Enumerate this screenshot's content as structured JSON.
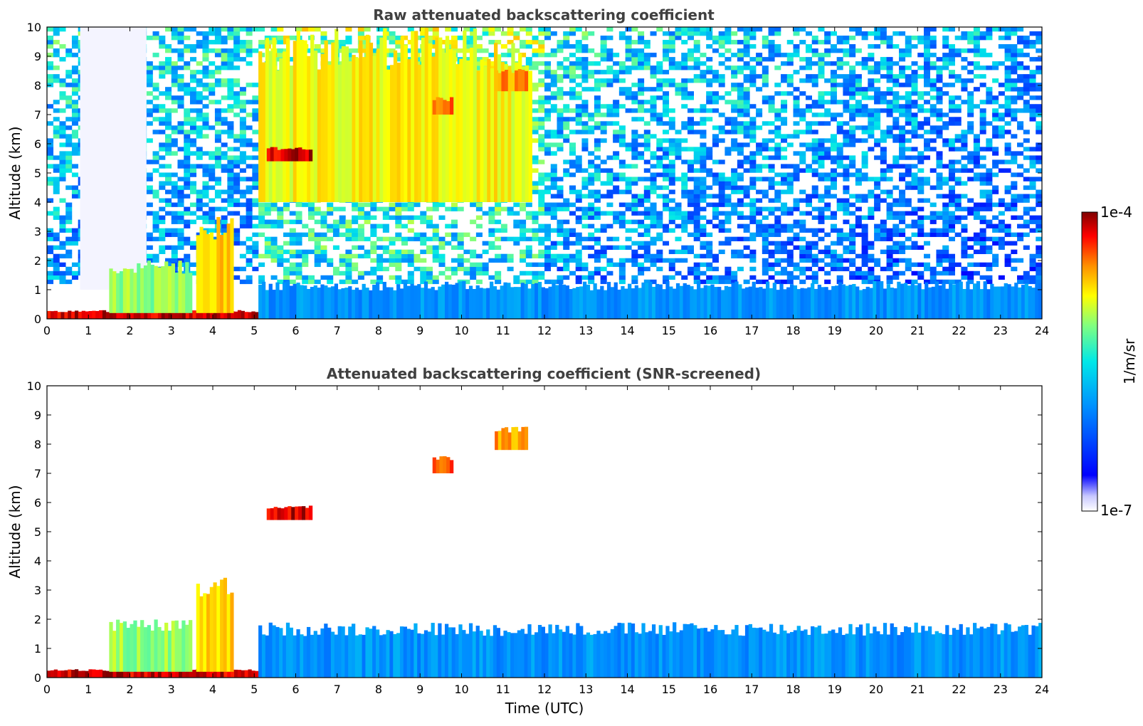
{
  "chart_data": [
    {
      "type": "heatmap",
      "title": "Raw attenuated backscattering coefficient",
      "xlabel": "",
      "ylabel": "Altitude (km)",
      "xlim": [
        0,
        24
      ],
      "ylim": [
        0,
        10
      ],
      "xticks": [
        "0",
        "1",
        "2",
        "3",
        "4",
        "5",
        "6",
        "7",
        "8",
        "9",
        "10",
        "11",
        "12",
        "13",
        "14",
        "15",
        "16",
        "17",
        "18",
        "19",
        "20",
        "21",
        "22",
        "23",
        "24"
      ],
      "yticks": [
        "0",
        "1",
        "2",
        "3",
        "4",
        "5",
        "6",
        "7",
        "8",
        "9",
        "10"
      ],
      "features": [
        {
          "name": "noise-background",
          "t_start": 0,
          "t_end": 24,
          "alt_bottom": 1.2,
          "alt_top": 10,
          "level": "variable"
        },
        {
          "name": "clear-gap",
          "t_start": 0.8,
          "t_end": 2.4,
          "alt_bottom": 1.0,
          "alt_top": 10,
          "level": "none"
        },
        {
          "name": "surface-layer",
          "t_start": 0.0,
          "t_end": 5.1,
          "alt_bottom": 0,
          "alt_top": 0.3,
          "level": 0.95
        },
        {
          "name": "low-cloud-column",
          "t_start": 3.6,
          "t_end": 4.5,
          "alt_bottom": 0.2,
          "alt_top": 3.5,
          "level": 0.75
        },
        {
          "name": "intermittent-columns",
          "t_start": 1.5,
          "t_end": 3.5,
          "alt_bottom": 0.2,
          "alt_top": 2.0,
          "level": 0.6
        },
        {
          "name": "boundary-layer",
          "t_start": 5.1,
          "t_end": 24,
          "alt_bottom": 0,
          "alt_top": 1.3,
          "level": 0.3
        },
        {
          "name": "upper-noise-high",
          "t_start": 5.1,
          "t_end": 11.7,
          "alt_bottom": 4.0,
          "alt_top": 10,
          "level": 0.7
        },
        {
          "name": "cloud-blob-1",
          "t_start": 5.3,
          "t_end": 6.4,
          "alt_bottom": 5.4,
          "alt_top": 5.9,
          "level": 0.95
        },
        {
          "name": "cloud-blob-2",
          "t_start": 9.3,
          "t_end": 9.8,
          "alt_bottom": 7.0,
          "alt_top": 7.6,
          "level": 0.85
        },
        {
          "name": "cloud-blob-3",
          "t_start": 10.8,
          "t_end": 11.6,
          "alt_bottom": 7.8,
          "alt_top": 8.6,
          "level": 0.8
        }
      ]
    },
    {
      "type": "heatmap",
      "title": "Attenuated backscattering coefficient (SNR-screened)",
      "xlabel": "Time (UTC)",
      "ylabel": "Altitude (km)",
      "xlim": [
        0,
        24
      ],
      "ylim": [
        0,
        10
      ],
      "xticks": [
        "0",
        "1",
        "2",
        "3",
        "4",
        "5",
        "6",
        "7",
        "8",
        "9",
        "10",
        "11",
        "12",
        "13",
        "14",
        "15",
        "16",
        "17",
        "18",
        "19",
        "20",
        "21",
        "22",
        "23",
        "24"
      ],
      "yticks": [
        "0",
        "1",
        "2",
        "3",
        "4",
        "5",
        "6",
        "7",
        "8",
        "9",
        "10"
      ],
      "features": [
        {
          "name": "surface-layer",
          "t_start": 0.0,
          "t_end": 5.1,
          "alt_bottom": 0,
          "alt_top": 0.3,
          "level": 0.95
        },
        {
          "name": "low-cloud-column",
          "t_start": 3.6,
          "t_end": 4.5,
          "alt_bottom": 0.2,
          "alt_top": 3.5,
          "level": 0.75
        },
        {
          "name": "intermittent-columns",
          "t_start": 1.5,
          "t_end": 3.5,
          "alt_bottom": 0.2,
          "alt_top": 2.0,
          "level": 0.6
        },
        {
          "name": "boundary-layer",
          "t_start": 5.1,
          "t_end": 24,
          "alt_bottom": 0,
          "alt_top": 1.9,
          "level": 0.3
        },
        {
          "name": "cloud-blob-1",
          "t_start": 5.3,
          "t_end": 6.4,
          "alt_bottom": 5.4,
          "alt_top": 5.9,
          "level": 0.95
        },
        {
          "name": "cloud-blob-2",
          "t_start": 9.3,
          "t_end": 9.8,
          "alt_bottom": 7.0,
          "alt_top": 7.6,
          "level": 0.85
        },
        {
          "name": "cloud-blob-3",
          "t_start": 10.8,
          "t_end": 11.6,
          "alt_bottom": 7.8,
          "alt_top": 8.6,
          "level": 0.8
        }
      ]
    }
  ],
  "colorbar": {
    "label": "1/m/sr",
    "max_label": "1e-4",
    "min_label": "1e-7",
    "range": [
      1e-07,
      0.0001
    ],
    "colors": [
      "#ffffff",
      "#0000ff",
      "#00bfff",
      "#00ffbf",
      "#ffff00",
      "#ff8000",
      "#ff0000",
      "#800000"
    ]
  }
}
